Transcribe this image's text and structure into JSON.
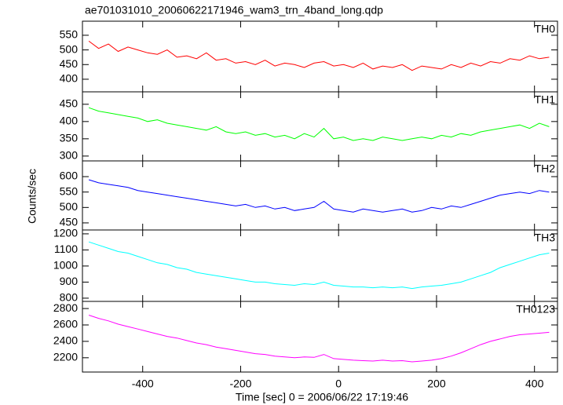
{
  "chart_data": [
    {
      "type": "line",
      "title": "ae701031010_20060622171946_wam3_trn_4band_long.qdp",
      "label": "TH0",
      "color": "#ff0000",
      "x": [
        -510,
        -490,
        -470,
        -450,
        -430,
        -410,
        -390,
        -370,
        -350,
        -330,
        -310,
        -290,
        -270,
        -250,
        -230,
        -210,
        -190,
        -170,
        -150,
        -130,
        -110,
        -90,
        -70,
        -50,
        -30,
        -10,
        10,
        30,
        50,
        70,
        90,
        110,
        130,
        150,
        170,
        190,
        210,
        230,
        250,
        270,
        290,
        310,
        330,
        350,
        370,
        390,
        410,
        430
      ],
      "values": [
        530,
        505,
        520,
        495,
        510,
        500,
        490,
        485,
        500,
        475,
        480,
        470,
        490,
        465,
        470,
        455,
        460,
        450,
        465,
        445,
        455,
        450,
        440,
        455,
        460,
        445,
        450,
        440,
        455,
        435,
        445,
        440,
        450,
        430,
        445,
        440,
        435,
        450,
        440,
        455,
        445,
        460,
        455,
        470,
        465,
        480,
        470,
        475
      ],
      "xlim": [
        -523,
        447
      ],
      "xticks": [
        -400,
        -200,
        0,
        200,
        400
      ],
      "ylim": [
        357,
        598
      ],
      "yticks": [
        400,
        450,
        500,
        550
      ]
    },
    {
      "type": "line",
      "label": "TH1",
      "color": "#00ff00",
      "x": [
        -510,
        -490,
        -470,
        -450,
        -430,
        -410,
        -390,
        -370,
        -350,
        -330,
        -310,
        -290,
        -270,
        -250,
        -230,
        -210,
        -190,
        -170,
        -150,
        -130,
        -110,
        -90,
        -70,
        -50,
        -30,
        -10,
        10,
        30,
        50,
        70,
        90,
        110,
        130,
        150,
        170,
        190,
        210,
        230,
        250,
        270,
        290,
        310,
        330,
        350,
        370,
        390,
        410,
        430
      ],
      "values": [
        440,
        430,
        425,
        420,
        415,
        410,
        400,
        405,
        395,
        390,
        385,
        380,
        375,
        385,
        370,
        365,
        370,
        360,
        365,
        355,
        360,
        350,
        365,
        355,
        380,
        350,
        355,
        345,
        350,
        345,
        355,
        350,
        345,
        350,
        355,
        350,
        360,
        355,
        365,
        360,
        370,
        375,
        380,
        385,
        390,
        380,
        395,
        385
      ],
      "xlim": [
        -523,
        447
      ],
      "xticks": [
        -400,
        -200,
        0,
        200,
        400
      ],
      "ylim": [
        286,
        486
      ],
      "yticks": [
        300,
        350,
        400,
        450
      ]
    },
    {
      "type": "line",
      "label": "TH2",
      "ylabel": "Counts/sec",
      "color": "#0000ff",
      "x": [
        -510,
        -490,
        -470,
        -450,
        -430,
        -410,
        -390,
        -370,
        -350,
        -330,
        -310,
        -290,
        -270,
        -250,
        -230,
        -210,
        -190,
        -170,
        -150,
        -130,
        -110,
        -90,
        -70,
        -50,
        -30,
        -10,
        10,
        30,
        50,
        70,
        90,
        110,
        130,
        150,
        170,
        190,
        210,
        230,
        250,
        270,
        290,
        310,
        330,
        350,
        370,
        390,
        410,
        430
      ],
      "values": [
        590,
        580,
        575,
        570,
        565,
        555,
        550,
        545,
        540,
        535,
        530,
        525,
        520,
        515,
        510,
        505,
        510,
        500,
        505,
        495,
        500,
        490,
        495,
        500,
        520,
        495,
        490,
        485,
        495,
        490,
        485,
        490,
        495,
        485,
        490,
        500,
        495,
        505,
        500,
        510,
        520,
        530,
        540,
        545,
        550,
        545,
        555,
        550
      ],
      "xlim": [
        -523,
        447
      ],
      "xticks": [
        -400,
        -200,
        0,
        200,
        400
      ],
      "ylim": [
        427,
        651
      ],
      "yticks": [
        450,
        500,
        550,
        600
      ]
    },
    {
      "type": "line",
      "label": "TH3",
      "color": "#00ffff",
      "x": [
        -510,
        -490,
        -470,
        -450,
        -430,
        -410,
        -390,
        -370,
        -350,
        -330,
        -310,
        -290,
        -270,
        -250,
        -230,
        -210,
        -190,
        -170,
        -150,
        -130,
        -110,
        -90,
        -70,
        -50,
        -30,
        -10,
        10,
        30,
        50,
        70,
        90,
        110,
        130,
        150,
        170,
        190,
        210,
        230,
        250,
        270,
        290,
        310,
        330,
        350,
        370,
        390,
        410,
        430
      ],
      "values": [
        1150,
        1130,
        1110,
        1090,
        1080,
        1060,
        1040,
        1020,
        1010,
        990,
        980,
        960,
        950,
        940,
        930,
        920,
        910,
        900,
        900,
        890,
        885,
        880,
        890,
        885,
        900,
        880,
        875,
        870,
        870,
        865,
        870,
        865,
        870,
        860,
        870,
        875,
        880,
        890,
        900,
        920,
        940,
        960,
        990,
        1010,
        1030,
        1050,
        1070,
        1080
      ],
      "xlim": [
        -523,
        447
      ],
      "xticks": [
        -400,
        -200,
        0,
        200,
        400
      ],
      "ylim": [
        780,
        1224
      ],
      "yticks": [
        800,
        900,
        1000,
        1100,
        1200
      ]
    },
    {
      "type": "line",
      "label": "TH0123",
      "xlabel": "Time [sec] 0 = 2006/06/22 17:19:46",
      "color": "#ff00ff",
      "x": [
        -510,
        -490,
        -470,
        -450,
        -430,
        -410,
        -390,
        -370,
        -350,
        -330,
        -310,
        -290,
        -270,
        -250,
        -230,
        -210,
        -190,
        -170,
        -150,
        -130,
        -110,
        -90,
        -70,
        -50,
        -30,
        -10,
        10,
        30,
        50,
        70,
        90,
        110,
        130,
        150,
        170,
        190,
        210,
        230,
        250,
        270,
        290,
        310,
        330,
        350,
        370,
        390,
        410,
        430
      ],
      "values": [
        2720,
        2680,
        2650,
        2610,
        2580,
        2550,
        2520,
        2490,
        2460,
        2440,
        2410,
        2380,
        2360,
        2330,
        2310,
        2290,
        2270,
        2250,
        2240,
        2220,
        2210,
        2200,
        2210,
        2205,
        2240,
        2190,
        2180,
        2170,
        2165,
        2160,
        2170,
        2160,
        2165,
        2150,
        2160,
        2170,
        2190,
        2220,
        2260,
        2310,
        2360,
        2400,
        2430,
        2460,
        2480,
        2490,
        2500,
        2510
      ],
      "xlim": [
        -523,
        447
      ],
      "xticks": [
        -400,
        -200,
        0,
        200,
        400
      ],
      "ylim": [
        2026,
        2887
      ],
      "yticks": [
        2200,
        2400,
        2600,
        2800
      ]
    }
  ]
}
